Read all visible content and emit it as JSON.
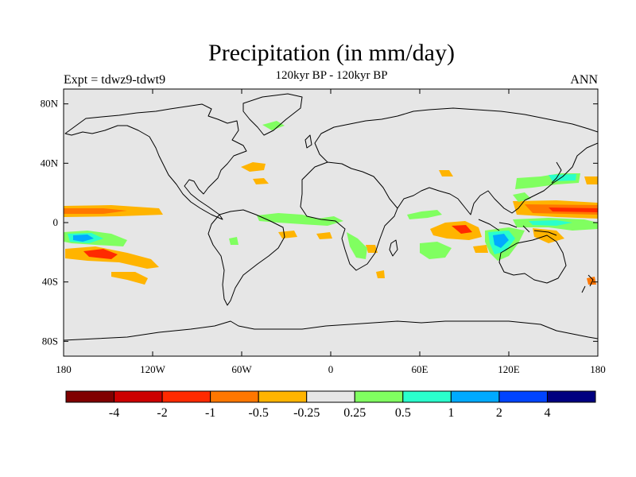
{
  "header": {
    "title": "Precipitation (in mm/day)",
    "subtitle": "120kyr BP - 120kyr BP",
    "left_label": "Expt = tdwz9-tdwt9",
    "right_label": "ANN"
  },
  "map": {
    "background_color": "#e6e6e6",
    "coast_color": "#000000",
    "lon_range": [
      -180,
      180
    ],
    "lat_range": [
      -90,
      90
    ],
    "lat_ticks": [
      {
        "value": 80,
        "label": "80N"
      },
      {
        "value": 40,
        "label": "40N"
      },
      {
        "value": 0,
        "label": "0"
      },
      {
        "value": -40,
        "label": "40S"
      },
      {
        "value": -80,
        "label": "80S"
      }
    ],
    "lon_ticks": [
      {
        "value": -180,
        "label": "180"
      },
      {
        "value": -120,
        "label": "120W"
      },
      {
        "value": -60,
        "label": "60W"
      },
      {
        "value": 0,
        "label": "0"
      },
      {
        "value": 60,
        "label": "60E"
      },
      {
        "value": 120,
        "label": "120E"
      },
      {
        "value": 180,
        "label": "180"
      }
    ]
  },
  "colorbar": {
    "colors": [
      "#800000",
      "#cc0000",
      "#ff2a00",
      "#ff7700",
      "#ffb400",
      "#e6e6e6",
      "#80ff60",
      "#2affcc",
      "#00aaff",
      "#0044ff",
      "#000080"
    ],
    "labels": [
      "-4",
      "-2",
      "-1",
      "-0.5",
      "-0.25",
      "0.25",
      "0.5",
      "1",
      "2",
      "4"
    ]
  }
}
